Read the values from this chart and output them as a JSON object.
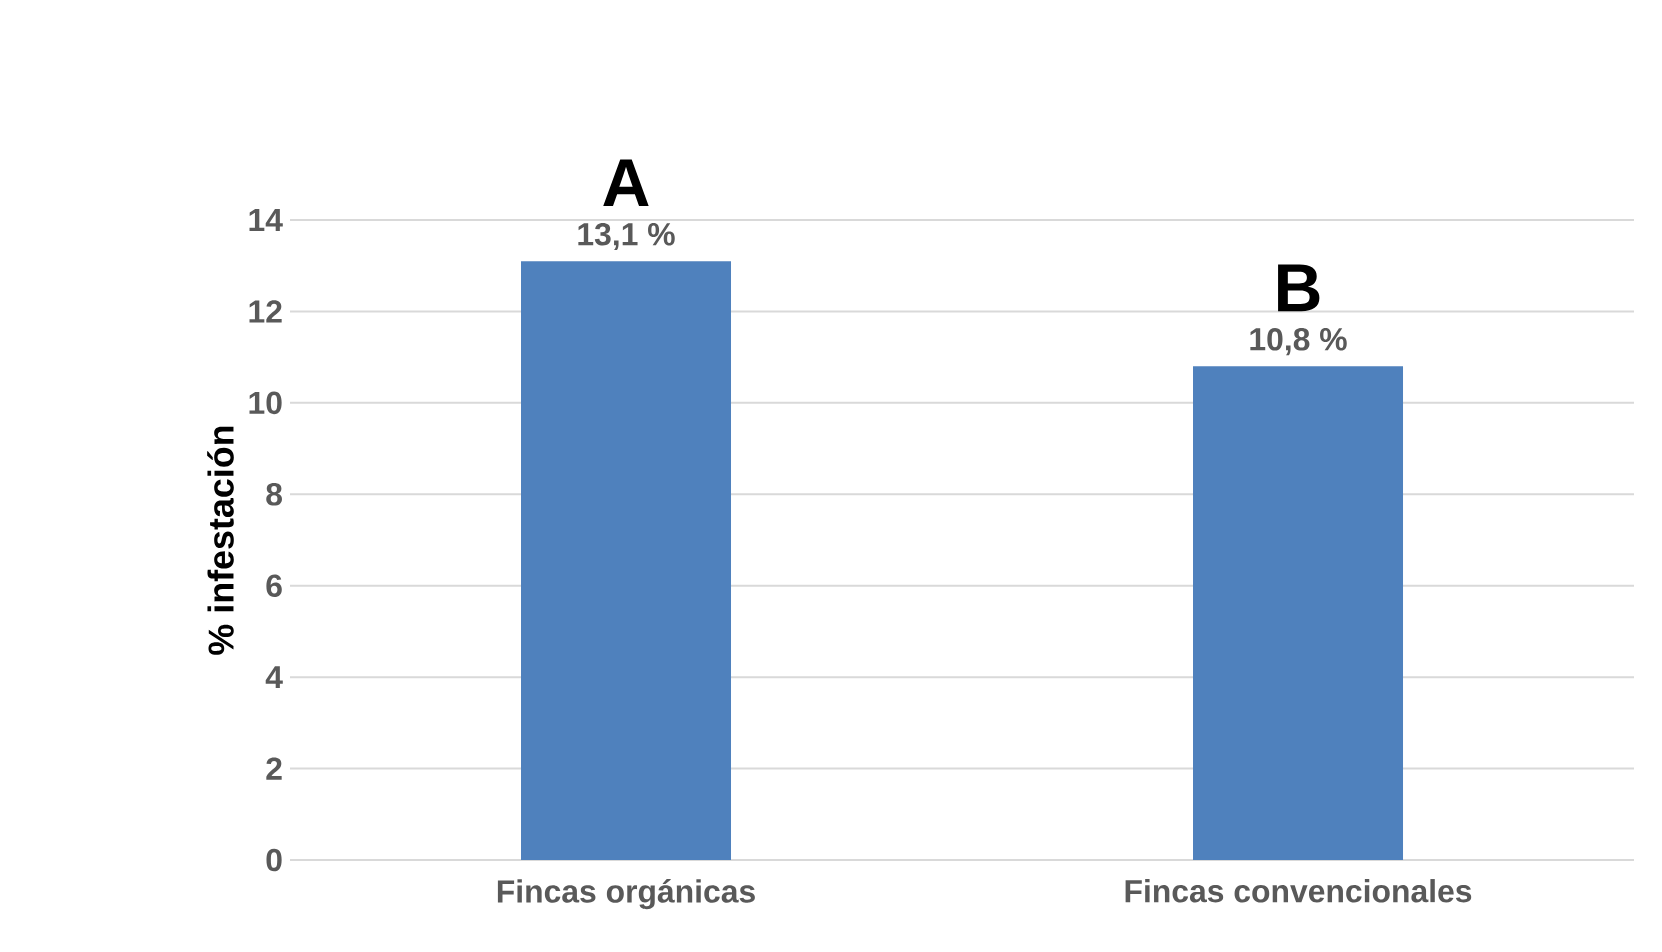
{
  "chart_data": {
    "type": "bar",
    "categories": [
      "Fincas orgánicas",
      "Fincas convencionales"
    ],
    "values": [
      13.1,
      10.8
    ],
    "color": "#4f81bd",
    "value_labels": [
      "13,1 %",
      "10,8 %"
    ],
    "ylabel": "% infestación",
    "ylim": [
      0,
      14
    ],
    "yticks": [
      0,
      2,
      4,
      6,
      8,
      10,
      12,
      14
    ],
    "grid": "y",
    "annotations": [
      {
        "text": "A",
        "x": "Fincas orgánicas",
        "y": 13.1
      },
      {
        "text": "B",
        "x": "Fincas convencionales",
        "y": 10.8
      }
    ]
  }
}
